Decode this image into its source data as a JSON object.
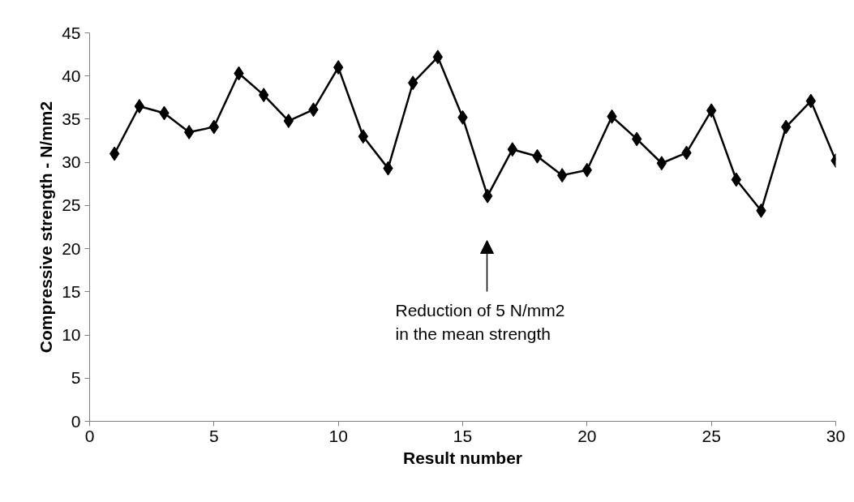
{
  "chart_data": {
    "type": "line",
    "xlabel": "Result number",
    "ylabel": "Compressive strength - N/mm2",
    "x": [
      1,
      2,
      3,
      4,
      5,
      6,
      7,
      8,
      9,
      10,
      11,
      12,
      13,
      14,
      15,
      16,
      17,
      18,
      19,
      20,
      21,
      22,
      23,
      24,
      25,
      26,
      27,
      28,
      29,
      30
    ],
    "series": [
      {
        "color": "#000000",
        "values": [
          31,
          36.5,
          35.7,
          33.5,
          34.1,
          40.3,
          37.8,
          34.8,
          36.1,
          41,
          33,
          29.3,
          39.2,
          42.2,
          35.2,
          26.1,
          31.5,
          30.7,
          28.5,
          29.1,
          35.3,
          32.7,
          29.9,
          31.1,
          36,
          28,
          24.4,
          34.1,
          37.1,
          30.2
        ]
      }
    ],
    "xlim": [
      0,
      30
    ],
    "xticks": [
      0,
      5,
      10,
      15,
      20,
      25,
      30
    ],
    "ylim": [
      0,
      45
    ],
    "yticks": [
      0,
      5,
      10,
      15,
      20,
      25,
      30,
      35,
      40,
      45
    ],
    "marker": "diamond",
    "line_style": "solid",
    "annotations": [
      "Reduction of 5 N/mm2\nin the mean strength"
    ]
  }
}
